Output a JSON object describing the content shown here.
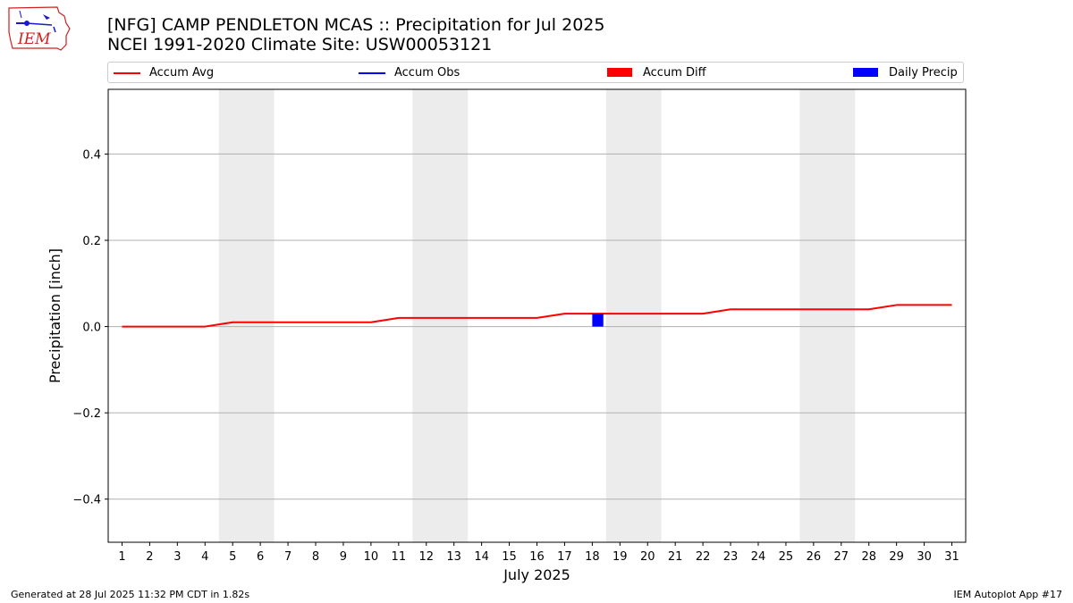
{
  "logo": {
    "text": "IEM",
    "icon": "iem-iowa-weather-logo-icon",
    "color": "#cc2222"
  },
  "title": {
    "line1": "[NFG] CAMP PENDLETON MCAS :: Precipitation for Jul 2025",
    "line2": "NCEI 1991-2020 Climate Site: USW00053121"
  },
  "legend": [
    {
      "label": "Accum Avg",
      "kind": "line",
      "color": "#ff0000"
    },
    {
      "label": "Accum Obs",
      "kind": "line",
      "color": "#0000ff"
    },
    {
      "label": "Accum Diff",
      "kind": "patch",
      "color": "#ff0000"
    },
    {
      "label": "Daily Precip",
      "kind": "patch",
      "color": "#0000ff"
    }
  ],
  "chart_data": {
    "type": "line",
    "xlabel": "July 2025",
    "ylabel": "Precipitation [inch]",
    "x": [
      1,
      2,
      3,
      4,
      5,
      6,
      7,
      8,
      9,
      10,
      11,
      12,
      13,
      14,
      15,
      16,
      17,
      18,
      19,
      20,
      21,
      22,
      23,
      24,
      25,
      26,
      27,
      28,
      29,
      30,
      31
    ],
    "xlim": [
      0.5,
      31.5
    ],
    "ylim": [
      -0.5,
      0.55
    ],
    "yticks": [
      -0.4,
      -0.2,
      0.0,
      0.2,
      0.4
    ],
    "ytick_labels": [
      "−0.4",
      "−0.2",
      "0.0",
      "0.2",
      "0.4"
    ],
    "grid": "horizontal",
    "weekend_shading": [
      [
        5,
        6
      ],
      [
        12,
        13
      ],
      [
        19,
        20
      ],
      [
        26,
        27
      ]
    ],
    "shade_color": "#ececec",
    "series": [
      {
        "name": "Accum Avg",
        "type": "line",
        "color": "#ff0000",
        "values": [
          0.0,
          0.0,
          0.0,
          0.0,
          0.01,
          0.01,
          0.01,
          0.01,
          0.01,
          0.01,
          0.02,
          0.02,
          0.02,
          0.02,
          0.02,
          0.02,
          0.03,
          0.03,
          0.03,
          0.03,
          0.03,
          0.03,
          0.04,
          0.04,
          0.04,
          0.04,
          0.04,
          0.04,
          0.05,
          0.05,
          0.05
        ]
      },
      {
        "name": "Daily Precip",
        "type": "bar",
        "color": "#0000ff",
        "points": [
          {
            "x": 18.2,
            "value": 0.03
          }
        ]
      }
    ]
  },
  "footer": {
    "left": "Generated at 28 Jul 2025 11:32 PM CDT in 1.82s",
    "right": "IEM Autoplot App #17"
  }
}
